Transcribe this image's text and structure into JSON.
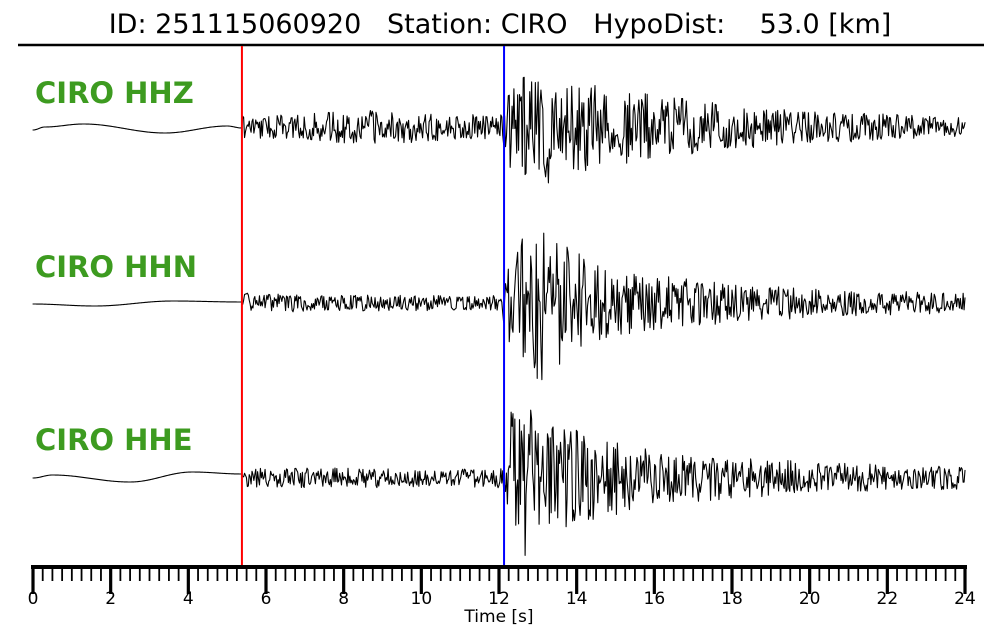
{
  "header": {
    "id_label": "ID:",
    "id_value": "251115060920",
    "station_label": "Station:",
    "station_value": "CIRO",
    "hypodist_label": "HypoDist:",
    "hypodist_value": "53.0",
    "hypodist_unit": "[km]",
    "title_display": "ID: 251115060920   Station: CIRO   HypoDist:    53.0 [km]"
  },
  "colors": {
    "trace": "#000000",
    "label_green": "#3d9b20",
    "p_pick": "#ff0000",
    "s_pick": "#0000ff",
    "axis": "#000000"
  },
  "chart_data": {
    "type": "line",
    "subtype": "seismogram",
    "title": "ID: 251115060920   Station: CIRO   HypoDist:    53.0 [km]",
    "event_id": "251115060920",
    "station": "CIRO",
    "hypodist_km": 53.0,
    "xlabel": "Time [s]",
    "xlim": [
      0,
      24
    ],
    "x_major_tick_step": 2,
    "x_minor_tick_step": 0.25,
    "x_ticks": [
      0,
      2,
      4,
      6,
      8,
      10,
      12,
      14,
      16,
      18,
      20,
      22,
      24
    ],
    "grid": false,
    "legend": false,
    "markers": [
      {
        "name": "p-pick",
        "time": 5.38,
        "color": "#ff0000"
      },
      {
        "name": "s-pick",
        "time": 12.13,
        "color": "#0000ff"
      }
    ],
    "traces": [
      {
        "label": "CIRO HHZ",
        "channel": "HHZ",
        "seed": 7,
        "quiet": [
          [
            0,
            3
          ],
          [
            0.3,
            0
          ],
          [
            1.3,
            -3
          ],
          [
            3.4,
            6
          ],
          [
            5.0,
            -1
          ],
          [
            5.38,
            1
          ]
        ],
        "envelope": [
          [
            5.38,
            11
          ],
          [
            6.0,
            12
          ],
          [
            7.0,
            13
          ],
          [
            8.0,
            16
          ],
          [
            9.3,
            17
          ],
          [
            10.5,
            14
          ],
          [
            11.5,
            12
          ],
          [
            12.05,
            13
          ],
          [
            12.25,
            40
          ],
          [
            12.7,
            55
          ],
          [
            13.05,
            50
          ],
          [
            13.3,
            80
          ],
          [
            13.6,
            55
          ],
          [
            14.0,
            45
          ],
          [
            14.8,
            40
          ],
          [
            15.8,
            33
          ],
          [
            16.5,
            30
          ],
          [
            17.5,
            25
          ],
          [
            18.5,
            21
          ],
          [
            19.5,
            18
          ],
          [
            20.5,
            16
          ],
          [
            21.5,
            14
          ],
          [
            22.5,
            12
          ],
          [
            23.5,
            10
          ],
          [
            24,
            9
          ]
        ]
      },
      {
        "label": "CIRO HHN",
        "channel": "HHN",
        "seed": 13,
        "quiet": [
          [
            0,
            1
          ],
          [
            1.6,
            3
          ],
          [
            3.6,
            -2
          ],
          [
            5.38,
            -1
          ]
        ],
        "envelope": [
          [
            5.38,
            10
          ],
          [
            6.5,
            9
          ],
          [
            8,
            8
          ],
          [
            10,
            8
          ],
          [
            11.5,
            7
          ],
          [
            12.05,
            8
          ],
          [
            12.3,
            50
          ],
          [
            12.7,
            70
          ],
          [
            13.05,
            80
          ],
          [
            13.35,
            75
          ],
          [
            13.7,
            60
          ],
          [
            14.2,
            45
          ],
          [
            15,
            35
          ],
          [
            16,
            28
          ],
          [
            17,
            24
          ],
          [
            18,
            20
          ],
          [
            19,
            17
          ],
          [
            20,
            15
          ],
          [
            21,
            13
          ],
          [
            22,
            12
          ],
          [
            23,
            11
          ],
          [
            24,
            10
          ]
        ]
      },
      {
        "label": "CIRO HHE",
        "channel": "HHE",
        "seed": 21,
        "quiet": [
          [
            0,
            0
          ],
          [
            0.5,
            -3
          ],
          [
            2.5,
            4
          ],
          [
            4.1,
            -6
          ],
          [
            5.38,
            -4
          ]
        ],
        "envelope": [
          [
            5.38,
            11
          ],
          [
            7,
            10
          ],
          [
            9,
            10
          ],
          [
            11,
            9
          ],
          [
            12.05,
            10
          ],
          [
            12.3,
            65
          ],
          [
            12.5,
            85
          ],
          [
            12.9,
            70
          ],
          [
            13.3,
            62
          ],
          [
            13.8,
            55
          ],
          [
            14.3,
            45
          ],
          [
            15.2,
            35
          ],
          [
            16.2,
            28
          ],
          [
            17.2,
            25
          ],
          [
            18.2,
            20
          ],
          [
            19.2,
            18
          ],
          [
            20.2,
            16
          ],
          [
            21.5,
            14
          ],
          [
            23,
            12
          ],
          [
            24,
            11
          ]
        ]
      }
    ]
  }
}
